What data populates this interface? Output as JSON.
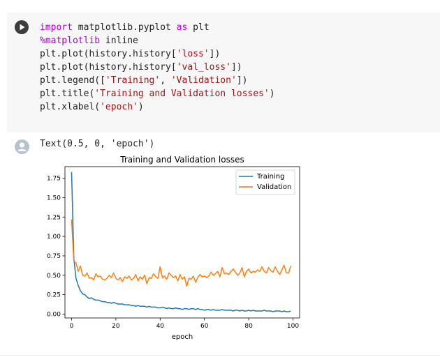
{
  "code_cell": {
    "lines": [
      [
        {
          "t": "import",
          "c": "kw"
        },
        {
          "t": " matplotlib.pyplot "
        },
        {
          "t": "as",
          "c": "kw"
        },
        {
          "t": " plt"
        }
      ],
      [
        {
          "t": "%matplotlib",
          "c": "kw"
        },
        {
          "t": " inline"
        }
      ],
      [
        {
          "t": "plt.plot(history.history["
        },
        {
          "t": "'loss'",
          "c": "str"
        },
        {
          "t": "])"
        }
      ],
      [
        {
          "t": "plt.plot(history.history["
        },
        {
          "t": "'val_loss'",
          "c": "str"
        },
        {
          "t": "])"
        }
      ],
      [
        {
          "t": "plt.legend(["
        },
        {
          "t": "'Training'",
          "c": "str"
        },
        {
          "t": ", "
        },
        {
          "t": "'Validation'",
          "c": "str"
        },
        {
          "t": "])"
        }
      ],
      [
        {
          "t": "plt.title("
        },
        {
          "t": "'Training and Validation losses'",
          "c": "str"
        },
        {
          "t": ")"
        }
      ],
      [
        {
          "t": "plt.xlabel("
        },
        {
          "t": "'epoch'",
          "c": "str"
        },
        {
          "t": ")"
        }
      ]
    ]
  },
  "output": {
    "text": "Text(0.5, 0, 'epoch')"
  },
  "icons": {
    "run": "play-icon",
    "output": "output-avatar-icon"
  },
  "chart_data": {
    "type": "line",
    "title": "Training and Validation losses",
    "xlabel": "epoch",
    "ylabel": "",
    "xlim": [
      -3,
      103
    ],
    "ylim": [
      -0.05,
      1.9
    ],
    "xticks": [
      0,
      20,
      40,
      60,
      80,
      100
    ],
    "yticks": [
      0.0,
      0.25,
      0.5,
      0.75,
      1.0,
      1.25,
      1.5,
      1.75
    ],
    "legend_position": "top-right",
    "grid": false,
    "x": [
      0,
      1,
      2,
      3,
      4,
      5,
      6,
      7,
      8,
      9,
      10,
      11,
      12,
      13,
      14,
      15,
      16,
      17,
      18,
      19,
      20,
      21,
      22,
      23,
      24,
      25,
      26,
      27,
      28,
      29,
      30,
      31,
      32,
      33,
      34,
      35,
      36,
      37,
      38,
      39,
      40,
      41,
      42,
      43,
      44,
      45,
      46,
      47,
      48,
      49,
      50,
      51,
      52,
      53,
      54,
      55,
      56,
      57,
      58,
      59,
      60,
      61,
      62,
      63,
      64,
      65,
      66,
      67,
      68,
      69,
      70,
      71,
      72,
      73,
      74,
      75,
      76,
      77,
      78,
      79,
      80,
      81,
      82,
      83,
      84,
      85,
      86,
      87,
      88,
      89,
      90,
      91,
      92,
      93,
      94,
      95,
      96,
      97,
      98,
      99
    ],
    "series": [
      {
        "name": "Training",
        "color": "#1f77b4",
        "values": [
          1.83,
          0.72,
          0.46,
          0.37,
          0.3,
          0.26,
          0.25,
          0.22,
          0.2,
          0.21,
          0.19,
          0.18,
          0.18,
          0.17,
          0.16,
          0.16,
          0.15,
          0.15,
          0.14,
          0.15,
          0.14,
          0.13,
          0.13,
          0.13,
          0.12,
          0.12,
          0.12,
          0.11,
          0.11,
          0.1,
          0.11,
          0.1,
          0.1,
          0.1,
          0.09,
          0.1,
          0.09,
          0.09,
          0.09,
          0.08,
          0.08,
          0.09,
          0.08,
          0.07,
          0.08,
          0.07,
          0.07,
          0.08,
          0.07,
          0.07,
          0.06,
          0.07,
          0.07,
          0.06,
          0.07,
          0.07,
          0.06,
          0.07,
          0.06,
          0.06,
          0.05,
          0.06,
          0.06,
          0.05,
          0.06,
          0.05,
          0.05,
          0.05,
          0.06,
          0.05,
          0.05,
          0.05,
          0.05,
          0.04,
          0.05,
          0.05,
          0.04,
          0.05,
          0.04,
          0.04,
          0.05,
          0.04,
          0.05,
          0.04,
          0.04,
          0.04,
          0.04,
          0.05,
          0.04,
          0.04,
          0.04,
          0.03,
          0.04,
          0.04,
          0.04,
          0.03,
          0.04,
          0.03,
          0.03,
          0.04
        ]
      },
      {
        "name": "Validation",
        "color": "#ff7f0e",
        "values": [
          1.22,
          0.68,
          0.66,
          0.55,
          0.62,
          0.5,
          0.49,
          0.53,
          0.46,
          0.47,
          0.44,
          0.52,
          0.48,
          0.49,
          0.45,
          0.44,
          0.46,
          0.5,
          0.47,
          0.53,
          0.46,
          0.44,
          0.47,
          0.42,
          0.48,
          0.46,
          0.49,
          0.44,
          0.46,
          0.51,
          0.43,
          0.48,
          0.45,
          0.5,
          0.39,
          0.47,
          0.46,
          0.52,
          0.48,
          0.46,
          0.61,
          0.47,
          0.49,
          0.45,
          0.53,
          0.5,
          0.47,
          0.49,
          0.43,
          0.51,
          0.45,
          0.48,
          0.36,
          0.46,
          0.45,
          0.49,
          0.41,
          0.47,
          0.51,
          0.48,
          0.49,
          0.47,
          0.49,
          0.54,
          0.5,
          0.52,
          0.55,
          0.48,
          0.6,
          0.52,
          0.53,
          0.51,
          0.55,
          0.58,
          0.54,
          0.5,
          0.53,
          0.6,
          0.48,
          0.55,
          0.58,
          0.53,
          0.55,
          0.54,
          0.57,
          0.55,
          0.61,
          0.55,
          0.53,
          0.6,
          0.56,
          0.54,
          0.61,
          0.55,
          0.51,
          0.57,
          0.63,
          0.53,
          0.53,
          0.62
        ]
      }
    ]
  }
}
